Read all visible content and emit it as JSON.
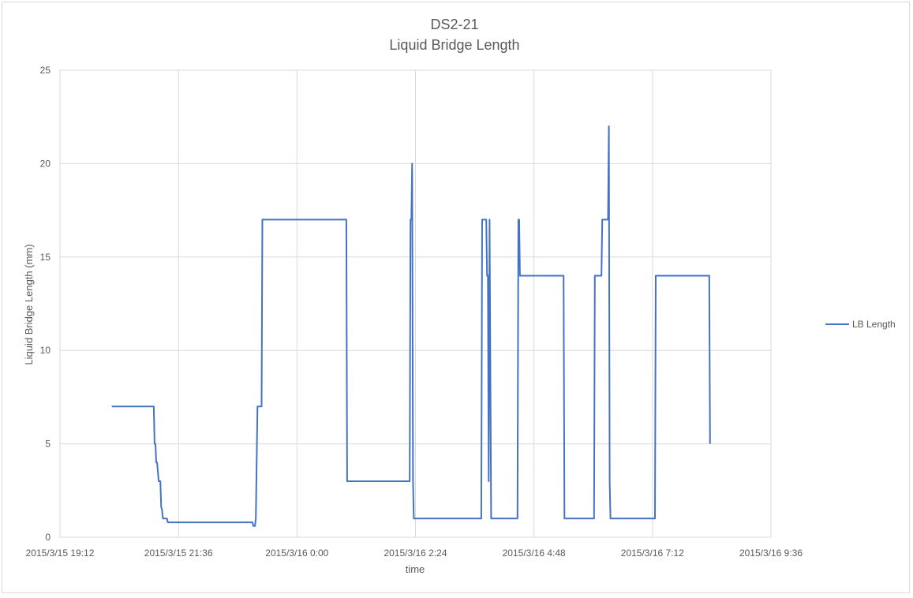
{
  "chart_data": {
    "type": "line",
    "title_line1": "DS2-21",
    "title_line2": "Liquid Bridge Length",
    "xlabel": "time",
    "ylabel": "Liquid Bridge Length (mm)",
    "legend_position": "right",
    "grid": true,
    "ylim": [
      0,
      25
    ],
    "yticks": [
      "0",
      "5",
      "10",
      "15",
      "20",
      "25"
    ],
    "xlim": [
      "2015/3/15 19:12",
      "2015/3/16 9:36"
    ],
    "xticks": [
      "2015/3/15 19:12",
      "2015/3/15 21:36",
      "2015/3/16 0:00",
      "2015/3/16 2:24",
      "2015/3/16 4:48",
      "2015/3/16 7:12",
      "2015/3/16 9:36"
    ],
    "series": [
      {
        "name": "LB Length",
        "color": "#4472c4",
        "points": [
          [
            "2015/3/15 20:15",
            7
          ],
          [
            "2015/3/15 21:06",
            7
          ],
          [
            "2015/3/15 21:07",
            5
          ],
          [
            "2015/3/15 21:08",
            5
          ],
          [
            "2015/3/15 21:09",
            4
          ],
          [
            "2015/3/15 21:10",
            4
          ],
          [
            "2015/3/15 21:11",
            3.5
          ],
          [
            "2015/3/15 21:12",
            3
          ],
          [
            "2015/3/15 21:14",
            3
          ],
          [
            "2015/3/15 21:15",
            1.6
          ],
          [
            "2015/3/15 21:16",
            1.5
          ],
          [
            "2015/3/15 21:17",
            1
          ],
          [
            "2015/3/15 21:22",
            1
          ],
          [
            "2015/3/15 21:23",
            0.8
          ],
          [
            "2015/3/15 23:06",
            0.8
          ],
          [
            "2015/3/15 23:07",
            0.6
          ],
          [
            "2015/3/15 23:09",
            0.6
          ],
          [
            "2015/3/15 23:10",
            1
          ],
          [
            "2015/3/15 23:12",
            7
          ],
          [
            "2015/3/15 23:17",
            7
          ],
          [
            "2015/3/15 23:18",
            17
          ],
          [
            "2015/3/16 1:00",
            17
          ],
          [
            "2015/3/16 1:01",
            3
          ],
          [
            "2015/3/16 2:17",
            3
          ],
          [
            "2015/3/16 2:18",
            17
          ],
          [
            "2015/3/16 2:19",
            17
          ],
          [
            "2015/3/16 2:20",
            20
          ],
          [
            "2015/3/16 2:21",
            3
          ],
          [
            "2015/3/16 2:22",
            1
          ],
          [
            "2015/3/16 3:44",
            1
          ],
          [
            "2015/3/16 3:45",
            17
          ],
          [
            "2015/3/16 3:50",
            17
          ],
          [
            "2015/3/16 3:51",
            14
          ],
          [
            "2015/3/16 3:52",
            14
          ],
          [
            "2015/3/16 3:53",
            3
          ],
          [
            "2015/3/16 3:54",
            17
          ],
          [
            "2015/3/16 3:56",
            1
          ],
          [
            "2015/3/16 4:28",
            1
          ],
          [
            "2015/3/16 4:29",
            17
          ],
          [
            "2015/3/16 4:30",
            17
          ],
          [
            "2015/3/16 4:31",
            14
          ],
          [
            "2015/3/16 5:24",
            14
          ],
          [
            "2015/3/16 5:25",
            1
          ],
          [
            "2015/3/16 6:01",
            1
          ],
          [
            "2015/3/16 6:02",
            14
          ],
          [
            "2015/3/16 6:10",
            14
          ],
          [
            "2015/3/16 6:11",
            17
          ],
          [
            "2015/3/16 6:18",
            17
          ],
          [
            "2015/3/16 6:19",
            22
          ],
          [
            "2015/3/16 6:20",
            3
          ],
          [
            "2015/3/16 6:21",
            1
          ],
          [
            "2015/3/16 7:15",
            1
          ],
          [
            "2015/3/16 7:16",
            14
          ],
          [
            "2015/3/16 8:21",
            14
          ],
          [
            "2015/3/16 8:22",
            5
          ]
        ]
      }
    ]
  }
}
